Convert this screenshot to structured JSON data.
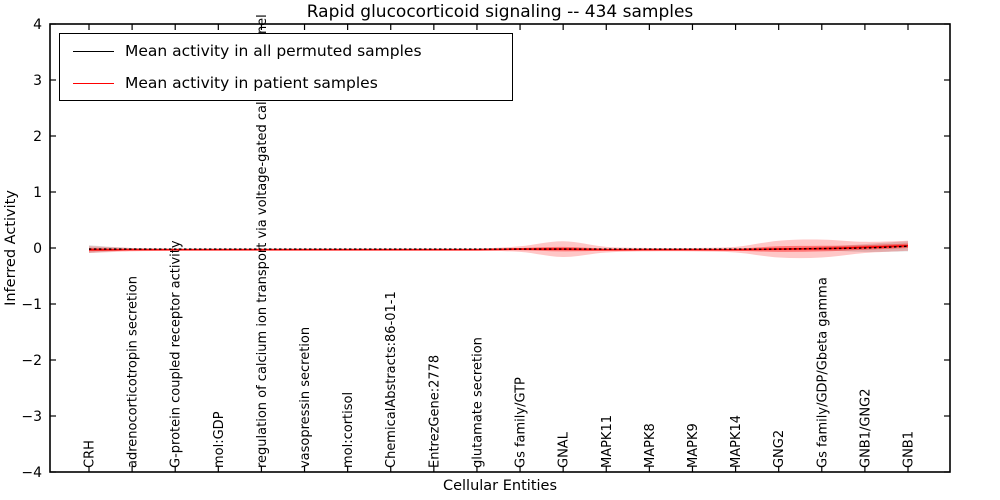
{
  "chart_data": {
    "type": "line",
    "title": "Rapid glucocorticoid signaling -- 434 samples",
    "xlabel": "Cellular Entities",
    "ylabel": "Inferred Activity",
    "ylim": [
      -4,
      4
    ],
    "yticks": [
      4,
      3,
      2,
      1,
      0,
      -1,
      -2,
      -3,
      -4
    ],
    "grid": false,
    "legend_position": "upper left",
    "categories": [
      "CRH",
      "adrenocorticotropin secretion",
      "G-protein coupled receptor activity",
      "mol:GDP",
      "regulation of calcium ion transport via voltage-gated calcium channel",
      "vasopressin secretion",
      "mol:cortisol",
      "ChemicalAbstracts:86-01-1",
      "EntrezGene:2778",
      "glutamate secretion",
      "Gs family/GTP",
      "GNAL",
      "MAPK11",
      "MAPK8",
      "MAPK9",
      "MAPK14",
      "GNG2",
      "Gs family/GDP/Gbeta gamma",
      "GNB1/GNG2",
      "GNB1"
    ],
    "series": [
      {
        "name": "Mean activity in all permuted samples",
        "color": "#000000",
        "style": "dashed",
        "values": [
          -0.02,
          -0.02,
          -0.02,
          -0.02,
          -0.02,
          -0.02,
          -0.02,
          -0.02,
          -0.02,
          -0.02,
          -0.02,
          -0.02,
          -0.02,
          -0.02,
          -0.02,
          -0.02,
          -0.02,
          -0.01,
          0.0,
          0.03
        ],
        "band_halfwidth": [
          0.07,
          0.02,
          0.008,
          0.008,
          0.008,
          0.008,
          0.008,
          0.008,
          0.008,
          0.008,
          0.008,
          0.015,
          0.008,
          0.008,
          0.008,
          0.008,
          0.015,
          0.03,
          0.07,
          0.09
        ]
      },
      {
        "name": "Mean activity in patient samples",
        "color": "#ff0000",
        "style": "solid",
        "values": [
          -0.03,
          -0.03,
          -0.03,
          -0.03,
          -0.03,
          -0.03,
          -0.03,
          -0.03,
          -0.03,
          -0.03,
          -0.02,
          -0.02,
          -0.03,
          -0.03,
          -0.03,
          -0.03,
          -0.02,
          -0.01,
          0.01,
          0.04
        ],
        "band_outer_halfwidth": [
          0.06,
          0.03,
          0.02,
          0.02,
          0.02,
          0.02,
          0.02,
          0.02,
          0.02,
          0.02,
          0.05,
          0.14,
          0.05,
          0.03,
          0.03,
          0.05,
          0.15,
          0.16,
          0.1,
          0.09
        ],
        "band_inner_halfwidth": [
          0.03,
          0.015,
          0.01,
          0.01,
          0.01,
          0.01,
          0.01,
          0.01,
          0.01,
          0.01,
          0.02,
          0.04,
          0.02,
          0.015,
          0.015,
          0.02,
          0.05,
          0.05,
          0.04,
          0.04
        ]
      }
    ],
    "legend": {
      "items": [
        {
          "label": "Mean activity in all permuted samples",
          "color": "#000000"
        },
        {
          "label": "Mean activity in patient samples",
          "color": "#ff0000"
        }
      ]
    },
    "band_colors": {
      "permuted_band": "#bdbdbd",
      "patient_band": "#ff0000"
    }
  }
}
